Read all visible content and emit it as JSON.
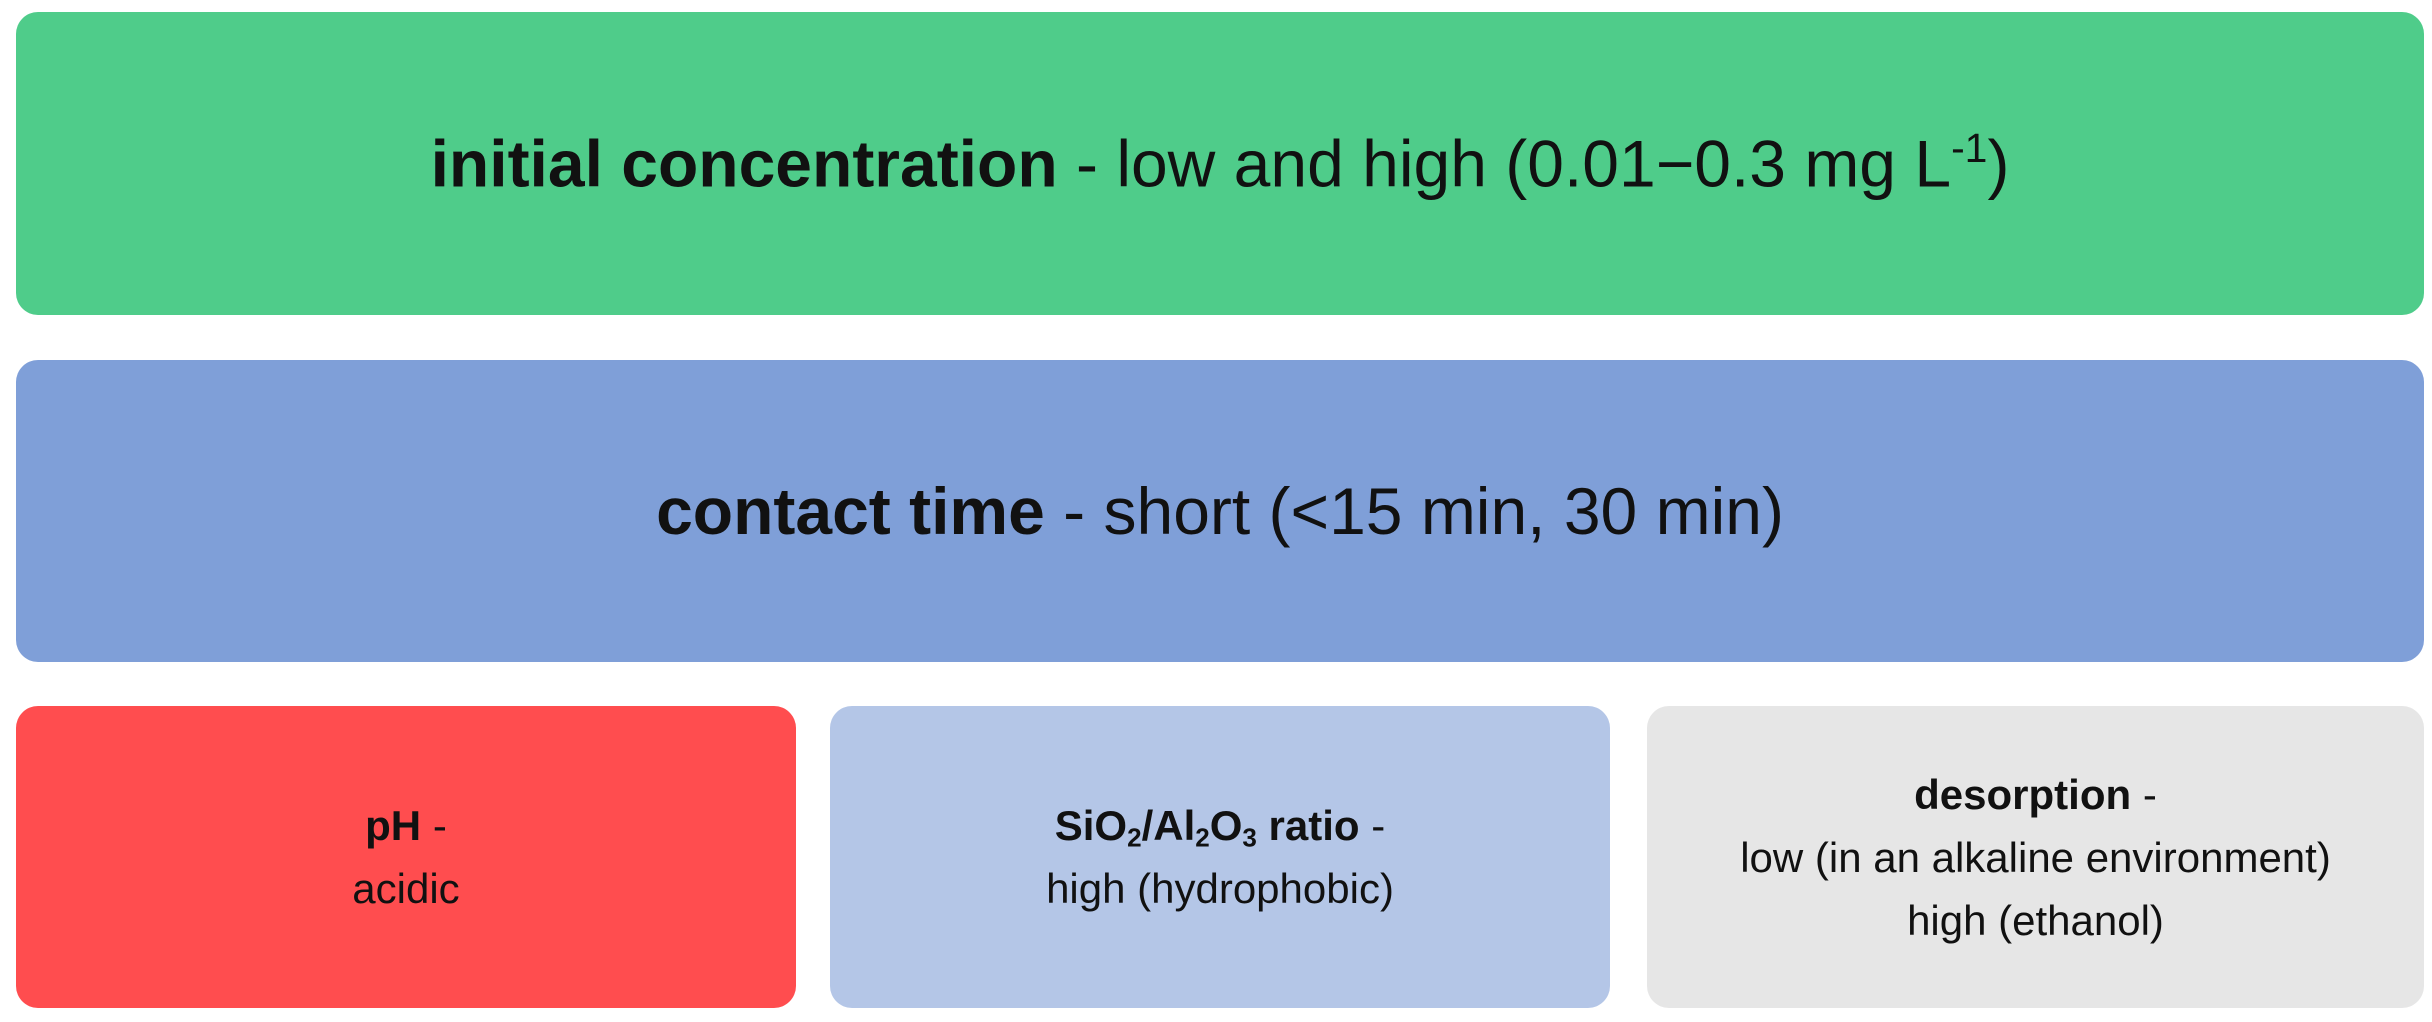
{
  "boxes": [
    {
      "label": "initial concentration",
      "description": [
        "- low and high (0.01−0.3 mg L",
        "-1",
        ")"
      ]
    },
    {
      "label": "contact time",
      "description": "- short (<15 min, 30 min)"
    },
    {
      "label": "pH",
      "separator": "-",
      "description": "acidic"
    },
    {
      "label": [
        "SiO",
        "2",
        "/Al",
        "2",
        "O",
        "3",
        " ratio"
      ],
      "separator": "-",
      "description": "high (hydrophobic)"
    },
    {
      "label": "desorption",
      "separator": "-",
      "description": [
        "low (in an alkaline environment)",
        "high (ethanol)"
      ]
    }
  ]
}
